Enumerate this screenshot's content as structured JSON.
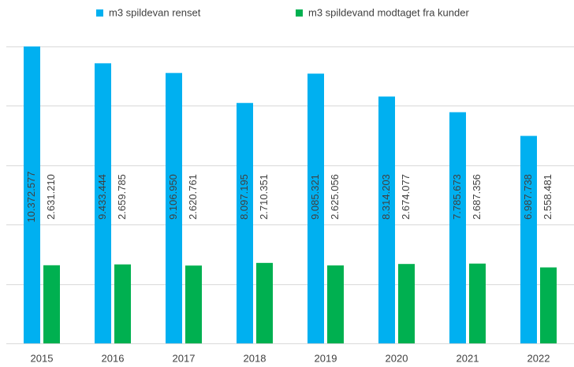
{
  "chart_data": {
    "type": "bar",
    "categories": [
      "2015",
      "2016",
      "2017",
      "2018",
      "2019",
      "2020",
      "2021",
      "2022"
    ],
    "series": [
      {
        "name": "m3 spildevan renset",
        "color": "#00b0f0",
        "values": [
          10372577,
          9433444,
          9106950,
          8097195,
          9085321,
          8314203,
          7785673,
          6987738
        ],
        "value_labels": [
          "10.372.577",
          "9.433.444",
          "9.106.950",
          "8.097.195",
          "9.085.321",
          "8.314.203",
          "7.785.673",
          "6.987.738"
        ]
      },
      {
        "name": "m3 spildevand modtaget fra kunder",
        "color": "#00b050",
        "values": [
          2631210,
          2659785,
          2620761,
          2710351,
          2625056,
          2674077,
          2687356,
          2558481
        ],
        "value_labels": [
          "2.631.210",
          "2.659.785",
          "2.620.761",
          "2.710.351",
          "2.625.056",
          "2.674.077",
          "2.687.356",
          "2.558.481"
        ]
      }
    ],
    "ylim": [
      0,
      10000000
    ],
    "yticks": [
      0,
      2000000,
      4000000,
      6000000,
      8000000,
      10000000
    ],
    "grid": true,
    "legend": "top"
  }
}
